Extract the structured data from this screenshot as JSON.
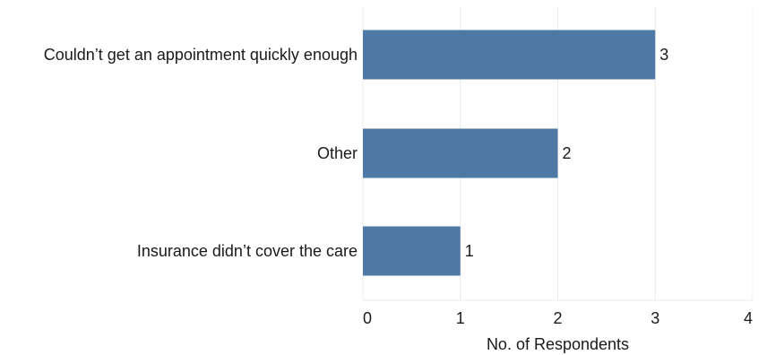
{
  "chart_data": {
    "type": "bar",
    "orientation": "horizontal",
    "categories": [
      "Couldn’t get an appointment quickly enough",
      "Other",
      "Insurance didn’t cover the care"
    ],
    "values": [
      3,
      2,
      1
    ],
    "xlabel": "No. of Respondents",
    "xlim": [
      0,
      4
    ],
    "xticks": [
      "0",
      "1",
      "2",
      "3",
      "4"
    ],
    "grid": true,
    "data_labels": true,
    "bar_color": "#4e79a7"
  }
}
